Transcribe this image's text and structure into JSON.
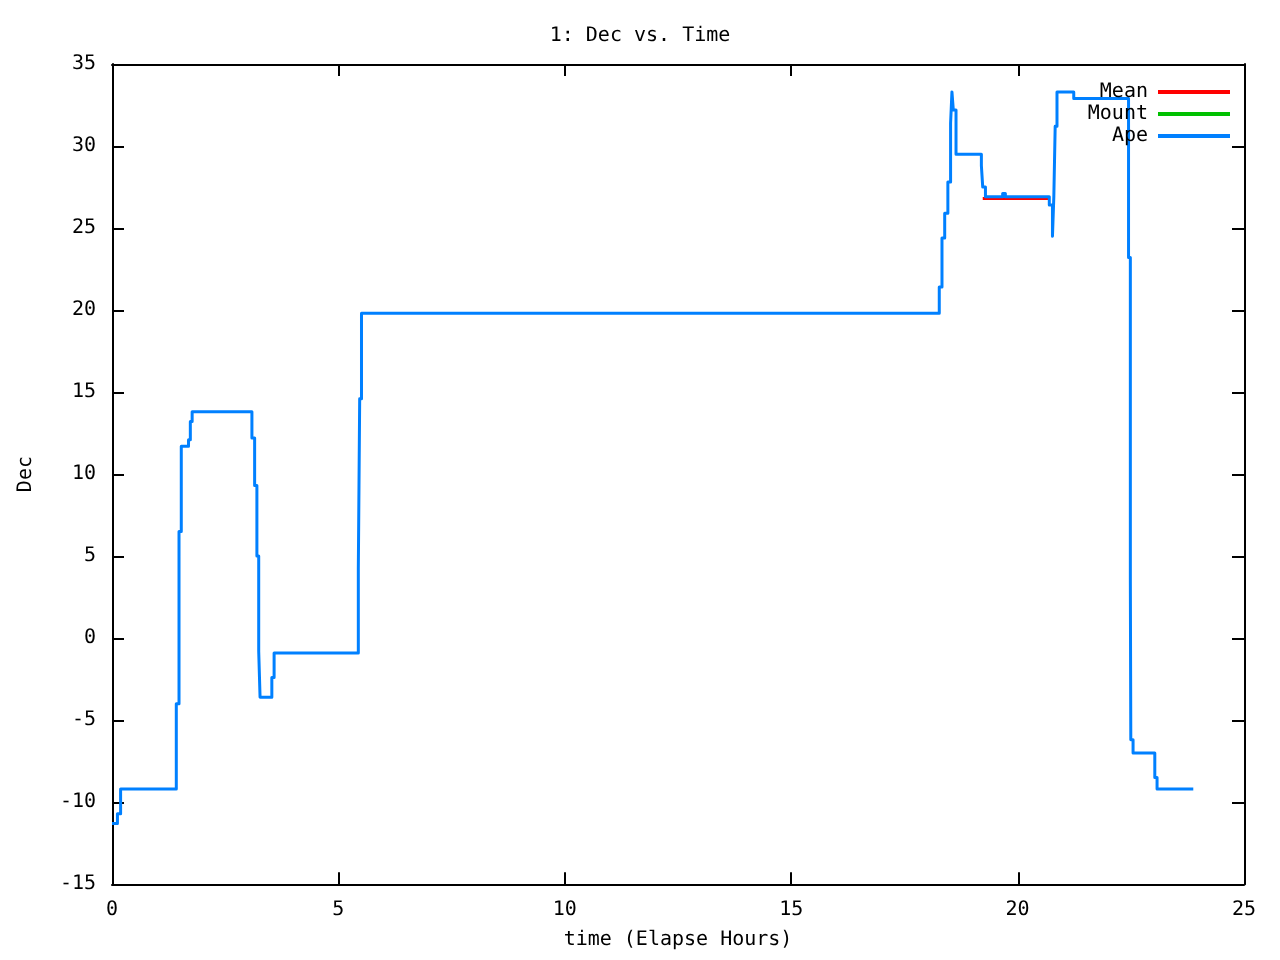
{
  "chart_data": {
    "type": "step",
    "title": "1: Dec vs. Time",
    "xlabel": "time (Elapse Hours)",
    "ylabel": "Dec",
    "xlim": [
      0,
      25
    ],
    "xticks": [
      0,
      5,
      10,
      15,
      20,
      25
    ],
    "ylim": [
      -15,
      35
    ],
    "yticks": [
      -15,
      -10,
      -5,
      0,
      5,
      10,
      15,
      20,
      25,
      30,
      35
    ],
    "grid": false,
    "legend": "top right",
    "marker": "none",
    "line_style": "solid",
    "series": [
      {
        "name": "Mean",
        "type": "line",
        "color": "#ff0000",
        "x": [
          19.23,
          20.7
        ],
        "values": [
          26.8,
          26.8
        ]
      },
      {
        "name": "Mount",
        "type": "line",
        "color": "#00c000"
      },
      {
        "name": "Ape",
        "color": "#0080ff",
        "x": [
          0,
          0.12,
          0.19,
          1.42,
          1.48,
          1.53,
          1.69,
          1.73,
          1.77,
          3.09,
          3.15,
          3.2,
          3.24,
          3.27,
          3.53,
          3.58,
          5.44,
          5.47,
          5.51,
          18.27,
          18.33,
          18.39,
          18.46,
          18.52,
          18.55,
          18.58,
          18.64,
          19.2,
          19.23,
          19.29,
          19.67,
          19.73,
          20.7,
          20.77,
          20.8,
          20.83,
          20.87,
          21.24,
          22.45,
          22.49,
          22.5,
          22.55,
          23.03,
          23.08,
          23.12,
          23.88
        ],
        "values": [
          -11.3,
          -10.7,
          -9.2,
          -4,
          6.5,
          11.7,
          12.1,
          13.2,
          13.8,
          12.2,
          9.3,
          5,
          -0.8,
          -3.6,
          -2.4,
          -0.9,
          4.2,
          14.6,
          19.8,
          21.4,
          24.4,
          25.9,
          27.8,
          31.4,
          33.3,
          32.2,
          29.5,
          28.8,
          27.5,
          26.9,
          27.1,
          26.9,
          26.4,
          24.5,
          26.9,
          31.2,
          33.3,
          32.9,
          23.2,
          3.6,
          -6.2,
          -7,
          -8.5,
          -9.2,
          -9.2,
          -9.2
        ]
      }
    ]
  }
}
